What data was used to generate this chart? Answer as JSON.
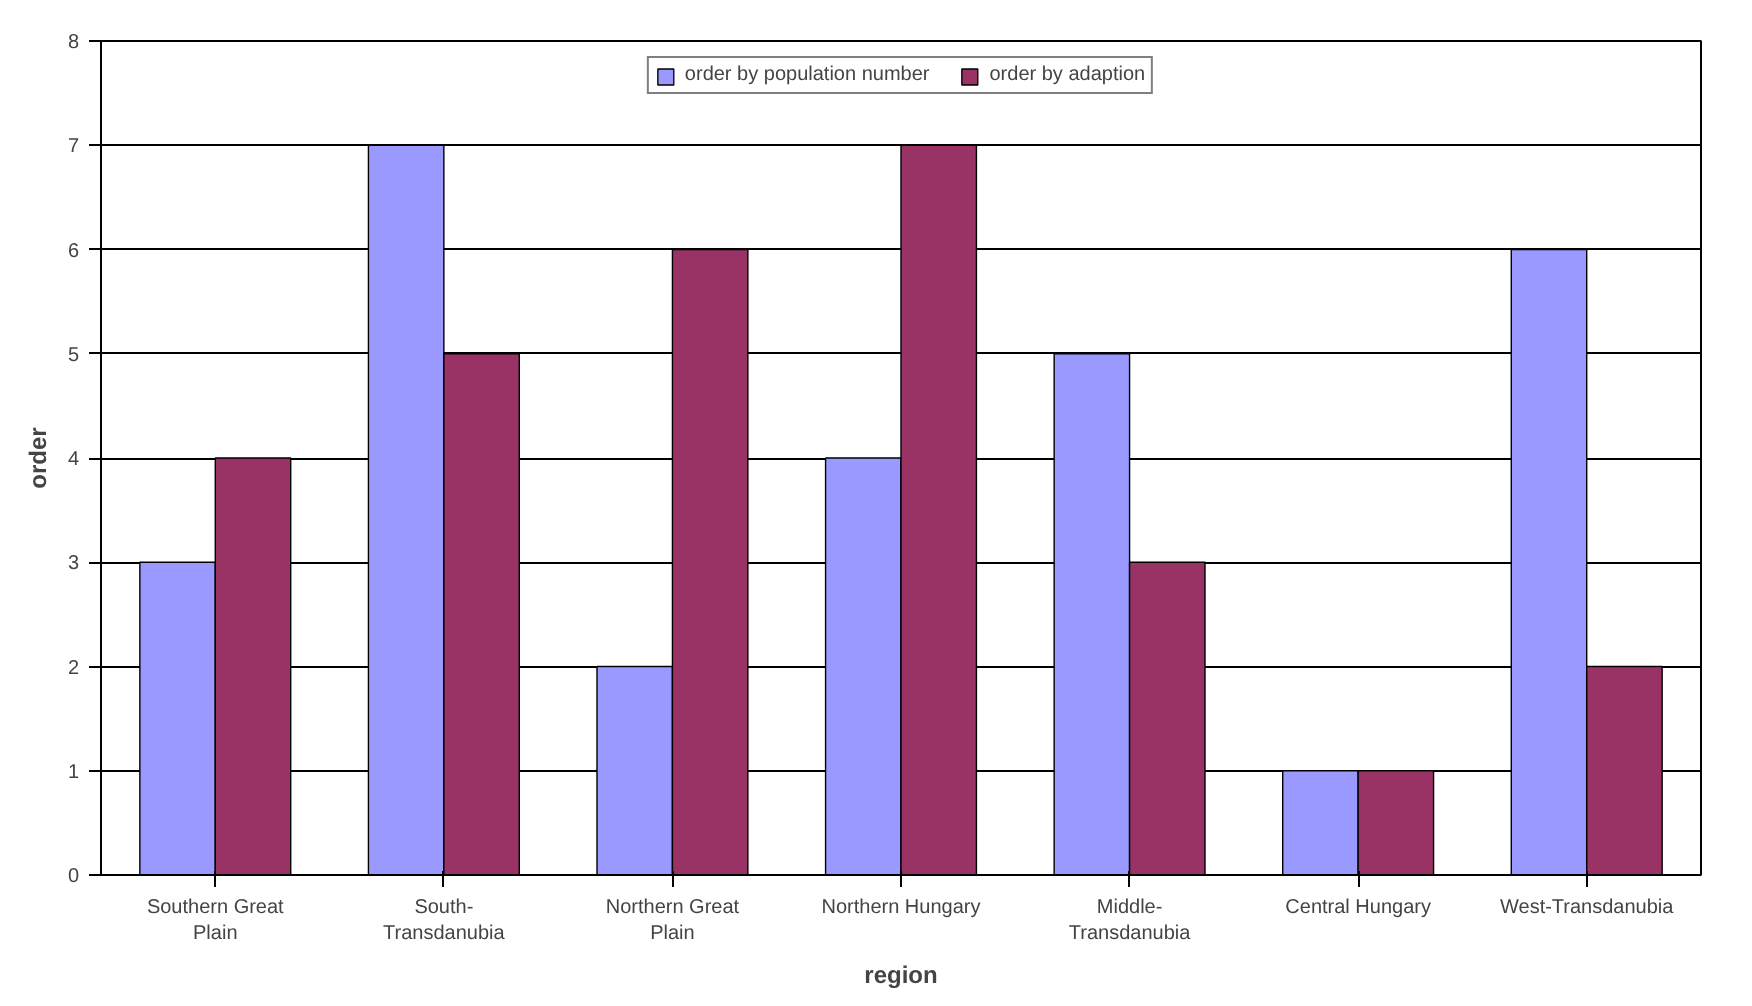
{
  "chart_data": {
    "type": "bar",
    "xlabel": "region",
    "ylabel": "order",
    "categories": [
      "Southern Great\nPlain",
      "South-\nTransdanubia",
      "Northern Great\nPlain",
      "Northern Hungary",
      "Middle-\nTransdanubia",
      "Central Hungary",
      "West-Transdanubia"
    ],
    "series": [
      {
        "name": "order by population number",
        "color": "#9999ff",
        "values": [
          3,
          7,
          2,
          4,
          5,
          1,
          6
        ]
      },
      {
        "name": "order by adaption",
        "color": "#993366",
        "values": [
          4,
          5,
          6,
          7,
          3,
          1,
          2
        ]
      }
    ],
    "ylim": [
      0,
      8
    ],
    "yticks": [
      0,
      1,
      2,
      3,
      4,
      5,
      6,
      7,
      8
    ],
    "grid": "y",
    "legend": "top"
  }
}
